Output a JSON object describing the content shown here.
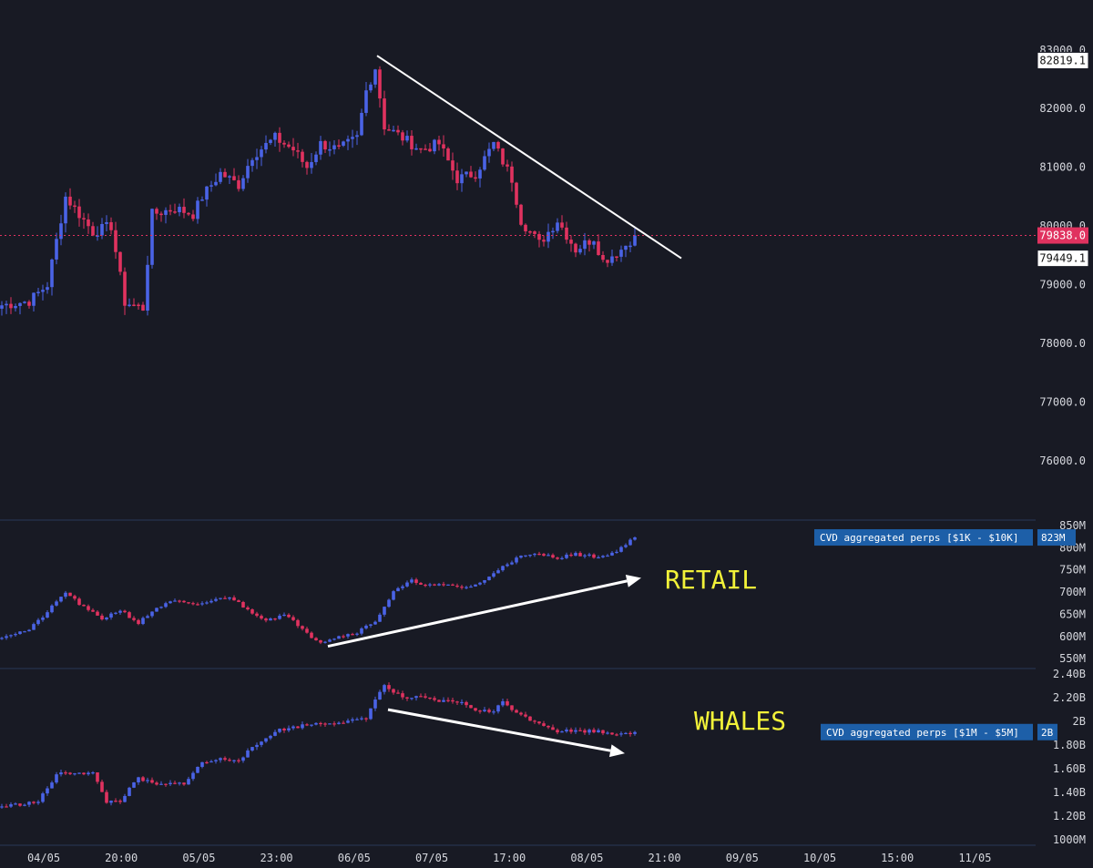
{
  "colors": {
    "background": "#181a24",
    "up": "#4a63e6",
    "down": "#e0325f",
    "separator": "#273858",
    "tick_text": "#d6d8de",
    "annotation": "#f2f239",
    "badge_bg": "#1d5fa8",
    "current_price_bg": "#e0325f"
  },
  "chart_data": [
    {
      "type": "candlestick",
      "title": "",
      "ylim": [
        75300,
        83400
      ],
      "y_ticks": [
        "83000.0",
        "82000.0",
        "81000.0",
        "80000.0",
        "79000.0",
        "78000.0",
        "77000.0",
        "76000.0"
      ],
      "y_tick_values": [
        83000,
        82000,
        81000,
        80000,
        79000,
        78000,
        77000,
        76000
      ],
      "x_ticks": [
        "04/05",
        "20:00",
        "05/05",
        "23:00",
        "06/05",
        "07/05",
        "17:00",
        "08/05",
        "21:00",
        "09/05",
        "10/05",
        "15:00",
        "11/05"
      ],
      "price_labels": [
        {
          "text": "82819.1",
          "value": 82819.1,
          "style": "high"
        },
        {
          "text": "79838.0",
          "value": 79838.0,
          "style": "current"
        },
        {
          "text": "79449.1",
          "value": 79449.1,
          "style": "low"
        }
      ],
      "current_price": 79838.0,
      "trendline": {
        "from_index": 0,
        "from_value": 82900,
        "to_index": 94,
        "to_value": 79450,
        "color": "#ffffff"
      },
      "anchors": [
        [
          0,
          78650
        ],
        [
          6,
          78720
        ],
        [
          10,
          79000
        ],
        [
          14,
          80500
        ],
        [
          18,
          80100
        ],
        [
          20,
          79900
        ],
        [
          24,
          80000
        ],
        [
          27,
          78700
        ],
        [
          31,
          78600
        ],
        [
          33,
          80200
        ],
        [
          38,
          80300
        ],
        [
          42,
          80200
        ],
        [
          44,
          80500
        ],
        [
          48,
          80900
        ],
        [
          52,
          80700
        ],
        [
          55,
          81200
        ],
        [
          60,
          81500
        ],
        [
          64,
          81300
        ],
        [
          67,
          81000
        ],
        [
          70,
          81400
        ],
        [
          74,
          81300
        ],
        [
          78,
          81500
        ],
        [
          80,
          82300
        ],
        [
          82,
          82700
        ],
        [
          84,
          81700
        ],
        [
          88,
          81500
        ],
        [
          92,
          81300
        ],
        [
          96,
          81400
        ],
        [
          100,
          80800
        ],
        [
          104,
          80900
        ],
        [
          108,
          81400
        ],
        [
          112,
          80800
        ],
        [
          114,
          80100
        ],
        [
          118,
          79700
        ],
        [
          122,
          80100
        ],
        [
          126,
          79600
        ],
        [
          130,
          79800
        ],
        [
          132,
          79400
        ],
        [
          136,
          79600
        ],
        [
          139,
          79838
        ]
      ]
    },
    {
      "type": "candlestick",
      "title": "CVD aggregated perps [$1K - $10K]",
      "badge_value": "823M",
      "annotation": "RETAIL",
      "ylim": [
        530,
        860
      ],
      "y_ticks": [
        "850M",
        "800M",
        "750M",
        "700M",
        "650M",
        "600M",
        "550M"
      ],
      "y_tick_values": [
        850,
        800,
        750,
        700,
        650,
        600,
        550
      ],
      "last_value": 823,
      "arrow": {
        "from_index": 71,
        "from_value": 578,
        "to_index": 142,
        "to_value": 732
      },
      "anchors": [
        [
          0,
          600
        ],
        [
          6,
          615
        ],
        [
          10,
          655
        ],
        [
          14,
          700
        ],
        [
          18,
          665
        ],
        [
          22,
          640
        ],
        [
          26,
          660
        ],
        [
          30,
          630
        ],
        [
          34,
          665
        ],
        [
          38,
          680
        ],
        [
          42,
          670
        ],
        [
          46,
          680
        ],
        [
          50,
          690
        ],
        [
          54,
          660
        ],
        [
          58,
          638
        ],
        [
          62,
          648
        ],
        [
          66,
          620
        ],
        [
          68,
          600
        ],
        [
          70,
          588
        ],
        [
          74,
          600
        ],
        [
          78,
          610
        ],
        [
          82,
          635
        ],
        [
          86,
          700
        ],
        [
          90,
          725
        ],
        [
          94,
          715
        ],
        [
          98,
          715
        ],
        [
          102,
          710
        ],
        [
          106,
          725
        ],
        [
          110,
          760
        ],
        [
          114,
          780
        ],
        [
          118,
          785
        ],
        [
          122,
          778
        ],
        [
          126,
          785
        ],
        [
          130,
          780
        ],
        [
          133,
          782
        ],
        [
          136,
          800
        ],
        [
          139,
          823
        ]
      ]
    },
    {
      "type": "candlestick",
      "title": "CVD aggregated perps [$1M - $5M]",
      "badge_value": "2B",
      "annotation": "WHALES",
      "ylim": [
        0.96,
        2.44
      ],
      "y_ticks": [
        "2.40B",
        "2.20B",
        "2B",
        "1.80B",
        "1.60B",
        "1.40B",
        "1.20B",
        "1000M"
      ],
      "y_tick_values": [
        2.4,
        2.2,
        2.0,
        1.8,
        1.6,
        1.4,
        1.2,
        1.0
      ],
      "last_value": 1.91,
      "arrow": {
        "from_index": 87,
        "from_value": 2.1,
        "to_index": 139,
        "to_value": 1.73
      },
      "anchors": [
        [
          0,
          1.28
        ],
        [
          8,
          1.32
        ],
        [
          12,
          1.55
        ],
        [
          16,
          1.57
        ],
        [
          20,
          1.56
        ],
        [
          23,
          1.32
        ],
        [
          26,
          1.33
        ],
        [
          30,
          1.52
        ],
        [
          34,
          1.46
        ],
        [
          40,
          1.48
        ],
        [
          44,
          1.65
        ],
        [
          48,
          1.68
        ],
        [
          52,
          1.68
        ],
        [
          56,
          1.8
        ],
        [
          60,
          1.92
        ],
        [
          64,
          1.95
        ],
        [
          68,
          1.98
        ],
        [
          72,
          1.99
        ],
        [
          76,
          2.0
        ],
        [
          80,
          2.02
        ],
        [
          82,
          2.2
        ],
        [
          84,
          2.3
        ],
        [
          88,
          2.2
        ],
        [
          92,
          2.2
        ],
        [
          96,
          2.17
        ],
        [
          100,
          2.17
        ],
        [
          104,
          2.1
        ],
        [
          108,
          2.08
        ],
        [
          110,
          2.17
        ],
        [
          114,
          2.05
        ],
        [
          118,
          1.99
        ],
        [
          122,
          1.92
        ],
        [
          126,
          1.92
        ],
        [
          130,
          1.92
        ],
        [
          134,
          1.9
        ],
        [
          139,
          1.91
        ]
      ]
    }
  ]
}
